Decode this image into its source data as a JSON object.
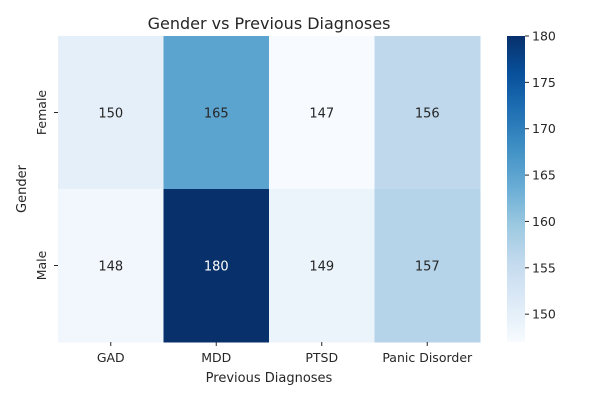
{
  "chart_data": {
    "type": "heatmap",
    "title": "Gender vs Previous Diagnoses",
    "xlabel": "Previous Diagnoses",
    "ylabel": "Gender",
    "x_categories": [
      "GAD",
      "MDD",
      "PTSD",
      "Panic Disorder"
    ],
    "y_categories": [
      "Female",
      "Male"
    ],
    "values": [
      [
        150,
        165,
        147,
        156
      ],
      [
        148,
        180,
        149,
        157
      ]
    ],
    "value_range": [
      147,
      180
    ],
    "colorbar_ticks": [
      150,
      155,
      160,
      165,
      170,
      175,
      180
    ],
    "colormap": "Blues",
    "colorbar_position": "right",
    "grid": false
  }
}
